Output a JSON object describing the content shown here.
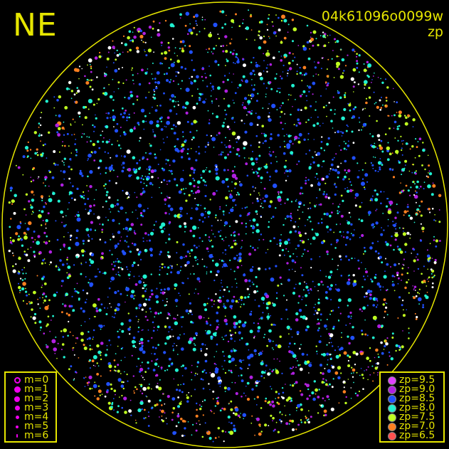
{
  "header": {
    "direction_label": "NE",
    "frame_id": "04k61096o0099w",
    "mode": "zp"
  },
  "colors": {
    "frame": "#e6e600",
    "background": "#000000"
  },
  "magnitude_legend": [
    {
      "label": "m=0",
      "style": "ring"
    },
    {
      "label": "m=1",
      "style": "filled"
    },
    {
      "label": "m=2",
      "style": "filled"
    },
    {
      "label": "m=3",
      "style": "filled"
    },
    {
      "label": "m=4",
      "style": "filled"
    },
    {
      "label": "m=5",
      "style": "filled"
    },
    {
      "label": "m=6",
      "style": "filled"
    }
  ],
  "magnitude_color": "#ee00ee",
  "zp_legend": [
    {
      "label": "zp=9.5",
      "color": "#e040ff"
    },
    {
      "label": "zp=9.0",
      "color": "#b020e0"
    },
    {
      "label": "zp=8.5",
      "color": "#2050ff"
    },
    {
      "label": "zp=8.0",
      "color": "#20f0d0"
    },
    {
      "label": "zp=7.5",
      "color": "#c0ff20"
    },
    {
      "label": "zp=7.0",
      "color": "#ff8020"
    },
    {
      "label": "zp=6.5",
      "color": "#ff5050"
    }
  ]
}
